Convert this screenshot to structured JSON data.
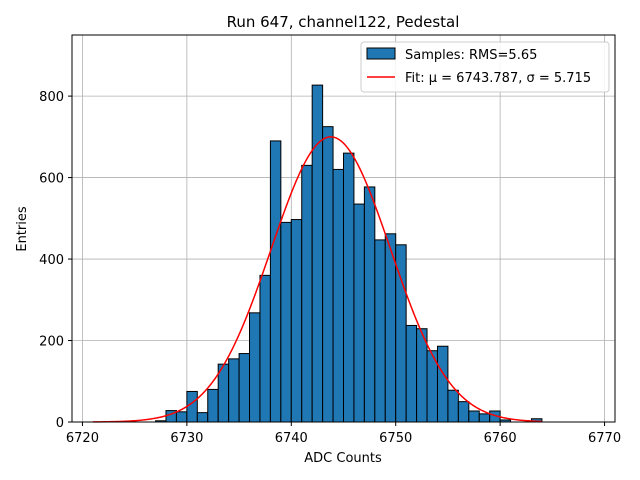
{
  "chart_data": {
    "type": "bar",
    "title": "Run 647, channel122, Pedestal",
    "xlabel": "ADC Counts",
    "ylabel": "Entries",
    "xlim": [
      6719,
      6771
    ],
    "ylim": [
      0,
      950
    ],
    "grid": true,
    "legend_position": "top-right",
    "xticks": [
      6720,
      6730,
      6740,
      6750,
      6760,
      6770
    ],
    "yticks": [
      0,
      200,
      400,
      600,
      800
    ],
    "bin_width": 1,
    "bins": [
      {
        "x": 6727,
        "value": 3
      },
      {
        "x": 6728,
        "value": 28
      },
      {
        "x": 6729,
        "value": 25
      },
      {
        "x": 6730,
        "value": 75
      },
      {
        "x": 6731,
        "value": 23
      },
      {
        "x": 6732,
        "value": 80
      },
      {
        "x": 6733,
        "value": 142
      },
      {
        "x": 6734,
        "value": 155
      },
      {
        "x": 6735,
        "value": 168
      },
      {
        "x": 6736,
        "value": 268
      },
      {
        "x": 6737,
        "value": 360
      },
      {
        "x": 6738,
        "value": 690
      },
      {
        "x": 6739,
        "value": 490
      },
      {
        "x": 6740,
        "value": 497
      },
      {
        "x": 6741,
        "value": 630
      },
      {
        "x": 6742,
        "value": 827
      },
      {
        "x": 6743,
        "value": 725
      },
      {
        "x": 6744,
        "value": 620
      },
      {
        "x": 6745,
        "value": 660
      },
      {
        "x": 6746,
        "value": 535
      },
      {
        "x": 6747,
        "value": 577
      },
      {
        "x": 6748,
        "value": 447
      },
      {
        "x": 6749,
        "value": 462
      },
      {
        "x": 6750,
        "value": 435
      },
      {
        "x": 6751,
        "value": 237
      },
      {
        "x": 6752,
        "value": 229
      },
      {
        "x": 6753,
        "value": 175
      },
      {
        "x": 6754,
        "value": 186
      },
      {
        "x": 6755,
        "value": 78
      },
      {
        "x": 6756,
        "value": 50
      },
      {
        "x": 6757,
        "value": 27
      },
      {
        "x": 6758,
        "value": 20
      },
      {
        "x": 6759,
        "value": 27
      },
      {
        "x": 6760,
        "value": 5
      },
      {
        "x": 6763,
        "value": 8
      }
    ],
    "fit": {
      "mu": 6743.787,
      "sigma": 5.715,
      "amplitude": 700,
      "x_range": [
        6721,
        6764
      ]
    },
    "series": [
      {
        "name": "Samples: RMS=5.65",
        "kind": "histogram",
        "color": "#1f77b4",
        "edgecolor": "#000000"
      },
      {
        "name": "Fit: μ = 6743.787, σ = 5.715",
        "kind": "line",
        "color": "#ff0000"
      }
    ]
  }
}
